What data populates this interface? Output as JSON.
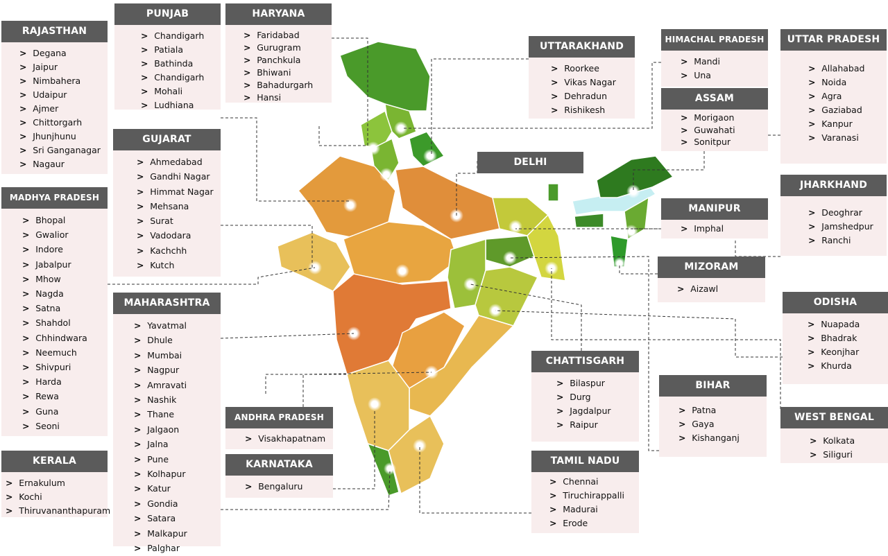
{
  "colors": {
    "header": "#5b5b5b",
    "body": "#f8eded",
    "dark_green": "#2e8b22",
    "green": "#7ab532",
    "yellow_green": "#c3c93a",
    "orange": "#e39a3c",
    "dark_orange": "#e07a36",
    "light_blue": "#c6eef2"
  },
  "states": [
    {
      "id": "rajasthan",
      "title": "RAJASTHAN",
      "cities": [
        "Degana",
        "Jaipur",
        "Nimbahera",
        "Udaipur",
        "Ajmer",
        "Chittorgarh",
        "Jhunjhunu",
        "Sri Ganganagar",
        "Nagaur"
      ]
    },
    {
      "id": "punjab",
      "title": "PUNJAB",
      "cities": [
        "Chandigarh",
        "Patiala",
        "Bathinda",
        "Chandigarh",
        "Mohali",
        "Ludhiana"
      ]
    },
    {
      "id": "haryana",
      "title": "HARYANA",
      "cities": [
        "Faridabad",
        "Gurugram",
        "Panchkula",
        "Bhiwani",
        "Bahadurgarh",
        "Hansi"
      ]
    },
    {
      "id": "gujarat",
      "title": "GUJARAT",
      "cities": [
        "Ahmedabad",
        "Gandhi Nagar",
        "Himmat Nagar",
        "Mehsana",
        "Surat",
        "Vadodara",
        "Kachchh",
        "Kutch"
      ]
    },
    {
      "id": "mp",
      "title": "MADHYA PRADESH",
      "small": true,
      "cities": [
        "Bhopal",
        "Gwalior",
        "Indore",
        "Jabalpur",
        "Mhow",
        "Nagda",
        "Satna",
        "Shahdol",
        "Chhindwara",
        "Neemuch",
        "Shivpuri",
        "Harda",
        "Rewa",
        "Guna",
        "Seoni"
      ]
    },
    {
      "id": "maharashtra",
      "title": "MAHARASHTRA",
      "cities": [
        "Yavatmal",
        "Dhule",
        "Mumbai",
        "Nagpur",
        "Amravati",
        "Nashik",
        "Thane",
        "Jalgaon",
        "Jalna",
        "Pune",
        "Kolhapur",
        "Katur",
        "Gondia",
        "Satara",
        "Malkapur",
        "Palghar"
      ]
    },
    {
      "id": "kerala",
      "title": "KERALA",
      "cities": [
        "Ernakulum",
        "Kochi",
        "Thiruvananthapuram"
      ]
    },
    {
      "id": "ap",
      "title": "ANDHRA PRADESH",
      "small": true,
      "cities": [
        "Visakhapatnam"
      ]
    },
    {
      "id": "karnataka",
      "title": "KARNATAKA",
      "cities": [
        "Bengaluru"
      ]
    },
    {
      "id": "uttarakhand",
      "title": "UTTARAKHAND",
      "cities": [
        "Roorkee",
        "Vikas Nagar",
        "Dehradun",
        "Rishikesh"
      ]
    },
    {
      "id": "delhi",
      "title": "DELHI",
      "cities": []
    },
    {
      "id": "himachal",
      "title": "HIMACHAL PRADESH",
      "small": true,
      "cities": [
        "Mandi",
        "Una"
      ]
    },
    {
      "id": "assam",
      "title": "ASSAM",
      "cities": [
        "Morigaon",
        "Guwahati",
        "Sonitpur"
      ]
    },
    {
      "id": "up",
      "title": "UTTAR PRADESH",
      "cities": [
        "Allahabad",
        "Noida",
        "Agra",
        "Gaziabad",
        "Kanpur",
        "Varanasi"
      ]
    },
    {
      "id": "jharkhand",
      "title": "JHARKHAND",
      "cities": [
        "Deoghrar",
        "Jamshedpur",
        "Ranchi"
      ]
    },
    {
      "id": "manipur",
      "title": "MANIPUR",
      "cities": [
        "Imphal"
      ]
    },
    {
      "id": "mizoram",
      "title": "MIZORAM",
      "cities": [
        "Aizawl"
      ]
    },
    {
      "id": "odisha",
      "title": "ODISHA",
      "cities": [
        "Nuapada",
        "Bhadrak",
        "Keonjhar",
        "Khurda"
      ]
    },
    {
      "id": "chattisgarh",
      "title": "CHATTISGARH",
      "cities": [
        "Bilaspur",
        "Durg",
        "Jagdalpur",
        "Raipur"
      ]
    },
    {
      "id": "bihar",
      "title": "BIHAR",
      "cities": [
        "Patna",
        "Gaya",
        "Kishanganj"
      ]
    },
    {
      "id": "westbengal",
      "title": "WEST BENGAL",
      "cities": [
        "Kolkata",
        "Siliguri"
      ]
    },
    {
      "id": "tamilnadu",
      "title": "TAMIL NADU",
      "cities": [
        "Chennai",
        "Tiruchirappalli",
        "Madurai",
        "Erode"
      ]
    }
  ]
}
